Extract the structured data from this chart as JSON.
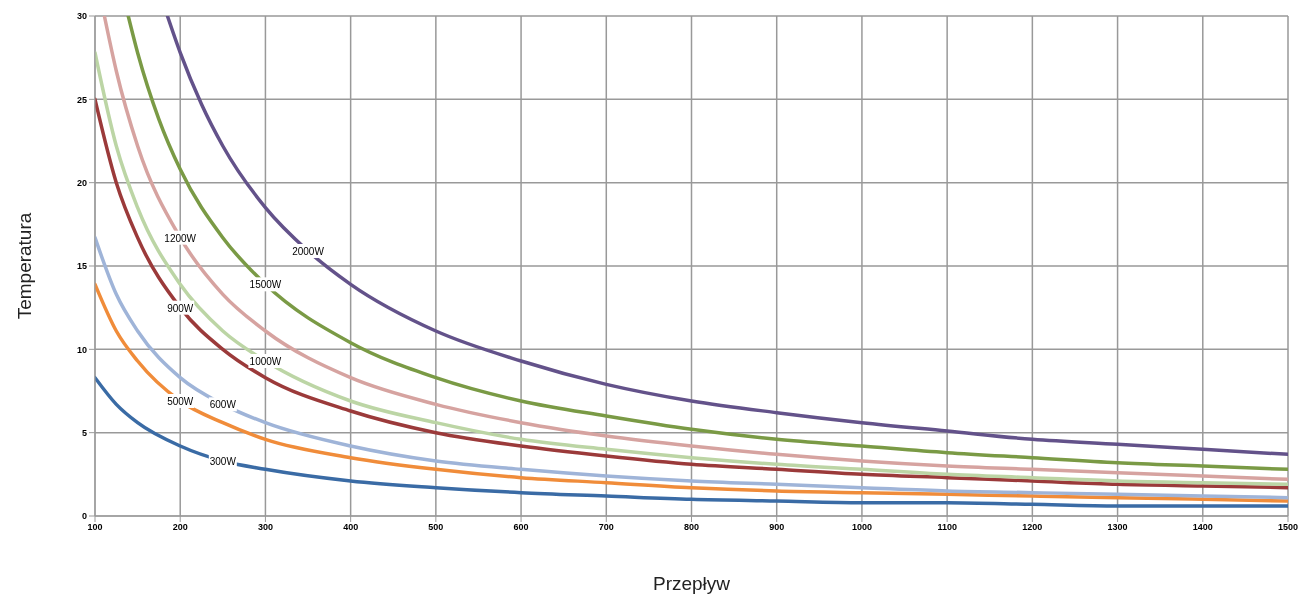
{
  "chart_data": {
    "type": "line",
    "xlabel": "Przepływ",
    "ylabel": "Temperatura",
    "xlim": [
      100,
      1500
    ],
    "xticks": [
      100,
      200,
      300,
      400,
      500,
      600,
      700,
      800,
      900,
      1000,
      1100,
      1200,
      1300,
      1400,
      1500
    ],
    "ylim": [
      0,
      30
    ],
    "yticks": [
      0,
      5,
      10,
      15,
      20,
      25,
      30
    ],
    "grid": true,
    "legend": false,
    "marker": "none",
    "line_style": "solid",
    "series": [
      {
        "name": "300W",
        "color": "#3a6ba5",
        "x": [
          100,
          125,
          150,
          200,
          250,
          300,
          400,
          500,
          600,
          700,
          800,
          900,
          1000,
          1100,
          1200,
          1300,
          1400,
          1500
        ],
        "values": [
          8.3,
          6.7,
          5.6,
          4.2,
          3.3,
          2.8,
          2.1,
          1.7,
          1.4,
          1.2,
          1.0,
          0.9,
          0.8,
          0.8,
          0.7,
          0.6,
          0.6,
          0.6
        ]
      },
      {
        "name": "500W",
        "color": "#f08c3a",
        "x": [
          100,
          125,
          150,
          200,
          250,
          300,
          400,
          500,
          600,
          700,
          800,
          900,
          1000,
          1100,
          1200,
          1300,
          1400,
          1500
        ],
        "values": [
          13.9,
          11.1,
          9.3,
          6.9,
          5.6,
          4.6,
          3.5,
          2.8,
          2.3,
          2.0,
          1.7,
          1.5,
          1.4,
          1.3,
          1.2,
          1.1,
          1.0,
          0.9
        ]
      },
      {
        "name": "600W",
        "color": "#9fb4d8",
        "x": [
          100,
          125,
          150,
          200,
          250,
          300,
          400,
          500,
          600,
          700,
          800,
          900,
          1000,
          1100,
          1200,
          1300,
          1400,
          1500
        ],
        "values": [
          16.7,
          13.3,
          11.1,
          8.3,
          6.7,
          5.6,
          4.2,
          3.3,
          2.8,
          2.4,
          2.1,
          1.9,
          1.7,
          1.5,
          1.4,
          1.3,
          1.2,
          1.1
        ]
      },
      {
        "name": "900W",
        "color": "#9b3a3a",
        "x": [
          100,
          125,
          150,
          200,
          250,
          300,
          400,
          500,
          600,
          700,
          800,
          900,
          1000,
          1100,
          1200,
          1300,
          1400,
          1500
        ],
        "values": [
          25.0,
          20.0,
          16.7,
          12.5,
          10.0,
          8.3,
          6.3,
          5.0,
          4.2,
          3.6,
          3.1,
          2.8,
          2.5,
          2.3,
          2.1,
          1.9,
          1.8,
          1.7
        ]
      },
      {
        "name": "1000W",
        "color": "#bcd5a5",
        "x": [
          100,
          125,
          150,
          200,
          250,
          300,
          400,
          500,
          600,
          700,
          800,
          900,
          1000,
          1100,
          1200,
          1300,
          1400,
          1500
        ],
        "values": [
          27.8,
          22.2,
          18.5,
          13.9,
          11.1,
          9.3,
          6.9,
          5.6,
          4.6,
          4.0,
          3.5,
          3.1,
          2.8,
          2.5,
          2.3,
          2.1,
          2.0,
          1.9
        ]
      },
      {
        "name": "1200W",
        "color": "#d6a3a0",
        "x": [
          111,
          125,
          150,
          200,
          250,
          300,
          400,
          500,
          600,
          700,
          800,
          900,
          1000,
          1100,
          1200,
          1300,
          1400,
          1500
        ],
        "values": [
          30.0,
          26.7,
          22.2,
          16.7,
          13.3,
          11.1,
          8.3,
          6.7,
          5.6,
          4.8,
          4.2,
          3.7,
          3.3,
          3.0,
          2.8,
          2.6,
          2.4,
          2.2
        ]
      },
      {
        "name": "1500W",
        "color": "#7a9a45",
        "x": [
          139,
          150,
          175,
          200,
          250,
          300,
          400,
          500,
          600,
          700,
          800,
          900,
          1000,
          1100,
          1200,
          1300,
          1400,
          1500
        ],
        "values": [
          30.0,
          27.8,
          23.8,
          20.8,
          16.7,
          13.9,
          10.4,
          8.3,
          6.9,
          6.0,
          5.2,
          4.6,
          4.2,
          3.8,
          3.5,
          3.2,
          3.0,
          2.8
        ]
      },
      {
        "name": "2000W",
        "color": "#63528a",
        "x": [
          185,
          200,
          225,
          250,
          300,
          350,
          400,
          500,
          600,
          700,
          800,
          900,
          1000,
          1100,
          1200,
          1300,
          1400,
          1500
        ],
        "values": [
          30.0,
          27.8,
          24.7,
          22.2,
          18.5,
          15.9,
          13.9,
          11.1,
          9.3,
          7.9,
          6.9,
          6.2,
          5.6,
          5.1,
          4.6,
          4.3,
          4.0,
          3.7
        ]
      }
    ]
  }
}
